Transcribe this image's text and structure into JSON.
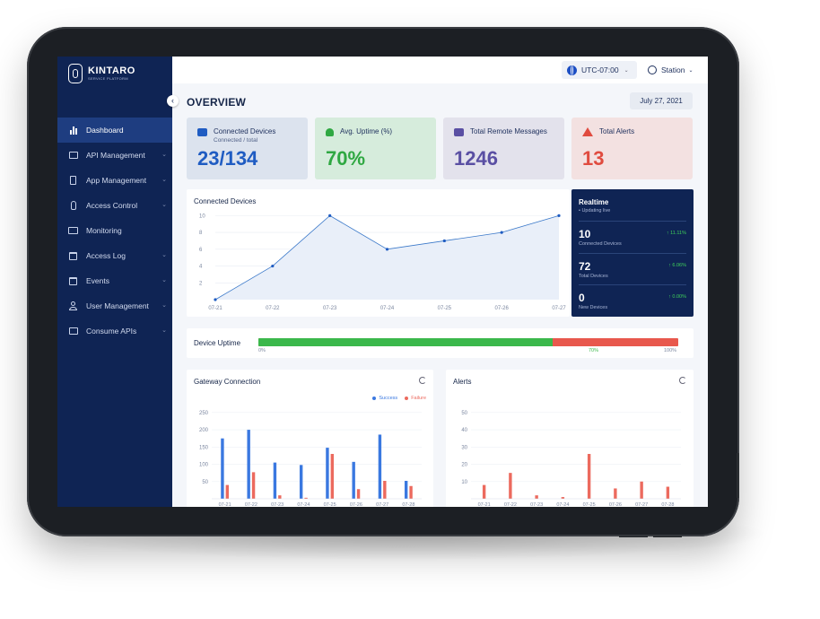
{
  "brand": {
    "name": "KINTARO",
    "subtitle": "SERVICE PLATFORM"
  },
  "topbar": {
    "timezone": "UTC-07:00",
    "user": "Station"
  },
  "sidebar": {
    "items": [
      {
        "label": "Dashboard",
        "icon": "bar-chart-icon",
        "active": true,
        "has_children": false
      },
      {
        "label": "API Management",
        "icon": "api-icon",
        "active": false,
        "has_children": true
      },
      {
        "label": "App Management",
        "icon": "phone-icon",
        "active": false,
        "has_children": true
      },
      {
        "label": "Access Control",
        "icon": "hand-icon",
        "active": false,
        "has_children": true
      },
      {
        "label": "Monitoring",
        "icon": "monitor-icon",
        "active": false,
        "has_children": false
      },
      {
        "label": "Access Log",
        "icon": "calendar-icon",
        "active": false,
        "has_children": true
      },
      {
        "label": "Events",
        "icon": "calendar-event-icon",
        "active": false,
        "has_children": true
      },
      {
        "label": "User Management",
        "icon": "user-icon",
        "active": false,
        "has_children": true
      },
      {
        "label": "Consume APIs",
        "icon": "api-icon",
        "active": false,
        "has_children": true
      }
    ]
  },
  "page": {
    "title": "OVERVIEW",
    "date": "July 27, 2021"
  },
  "stats": [
    {
      "title": "Connected Devices",
      "subtitle": "Connected / total",
      "value": "23/134",
      "icon": "car-icon",
      "bg": "#dce3ee",
      "color": "#1f5cc2"
    },
    {
      "title": "Avg. Uptime (%)",
      "subtitle": "",
      "value": "70%",
      "icon": "user-icon",
      "bg": "#d6ecdc",
      "color": "#2fa842"
    },
    {
      "title": "Total Remote Messages",
      "subtitle": "",
      "value": "1246",
      "icon": "mail-icon",
      "bg": "#e3e2ec",
      "color": "#5a4fa3"
    },
    {
      "title": "Total Alerts",
      "subtitle": "",
      "value": "13",
      "icon": "warning-icon",
      "bg": "#f3e1e1",
      "color": "#e04b3f"
    }
  ],
  "connected_panel": {
    "title": "Connected Devices"
  },
  "realtime": {
    "title": "Realtime",
    "subtitle": "• Updating live",
    "rows": [
      {
        "value": "10",
        "label": "Connected Devices",
        "change": "↑ 11.11%"
      },
      {
        "value": "72",
        "label": "Total Devices",
        "change": "↑ 6.06%"
      },
      {
        "value": "0",
        "label": "New Devices",
        "change": "↑ 0.00%"
      }
    ]
  },
  "uptime": {
    "title": "Device Uptime",
    "percent": 70,
    "ticks": [
      "0%",
      "70%",
      "100%"
    ]
  },
  "gateway_panel": {
    "title": "Gateway Connection",
    "legend": [
      "Success",
      "Failure"
    ]
  },
  "alerts_panel": {
    "title": "Alerts"
  },
  "colors": {
    "success": "#3a78e0",
    "failure": "#ec6a5e",
    "line": "#3a78c9",
    "navy": "#0f2454"
  },
  "chart_data": [
    {
      "type": "area",
      "title": "Connected Devices",
      "categories": [
        "07-21",
        "07-22",
        "07-23",
        "07-24",
        "07-25",
        "07-26",
        "07-27"
      ],
      "values": [
        0,
        4,
        10,
        6,
        7,
        8,
        10
      ],
      "ylim": [
        0,
        11
      ],
      "yticks": [
        2,
        4,
        6,
        8,
        10
      ],
      "grid": true
    },
    {
      "type": "bar",
      "title": "Gateway Connection",
      "categories": [
        "07-21",
        "07-22",
        "07-23",
        "07-24",
        "07-25",
        "07-26",
        "07-27",
        "07-28"
      ],
      "series": [
        {
          "name": "Success",
          "values": [
            175,
            200,
            105,
            98,
            148,
            107,
            186,
            52
          ]
        },
        {
          "name": "Failure",
          "values": [
            40,
            77,
            10,
            3,
            130,
            28,
            52,
            37
          ]
        }
      ],
      "ylim": [
        0,
        260
      ],
      "yticks": [
        50,
        100,
        150,
        200,
        250
      ],
      "legend": "top-right"
    },
    {
      "type": "bar",
      "title": "Alerts",
      "categories": [
        "07-21",
        "07-22",
        "07-23",
        "07-24",
        "07-25",
        "07-26",
        "07-27",
        "07-28"
      ],
      "series": [
        {
          "values": [
            8,
            15,
            2,
            1,
            26,
            6,
            10,
            7
          ]
        }
      ],
      "ylim": [
        0,
        52
      ],
      "yticks": [
        10,
        20,
        30,
        40,
        50
      ]
    }
  ]
}
